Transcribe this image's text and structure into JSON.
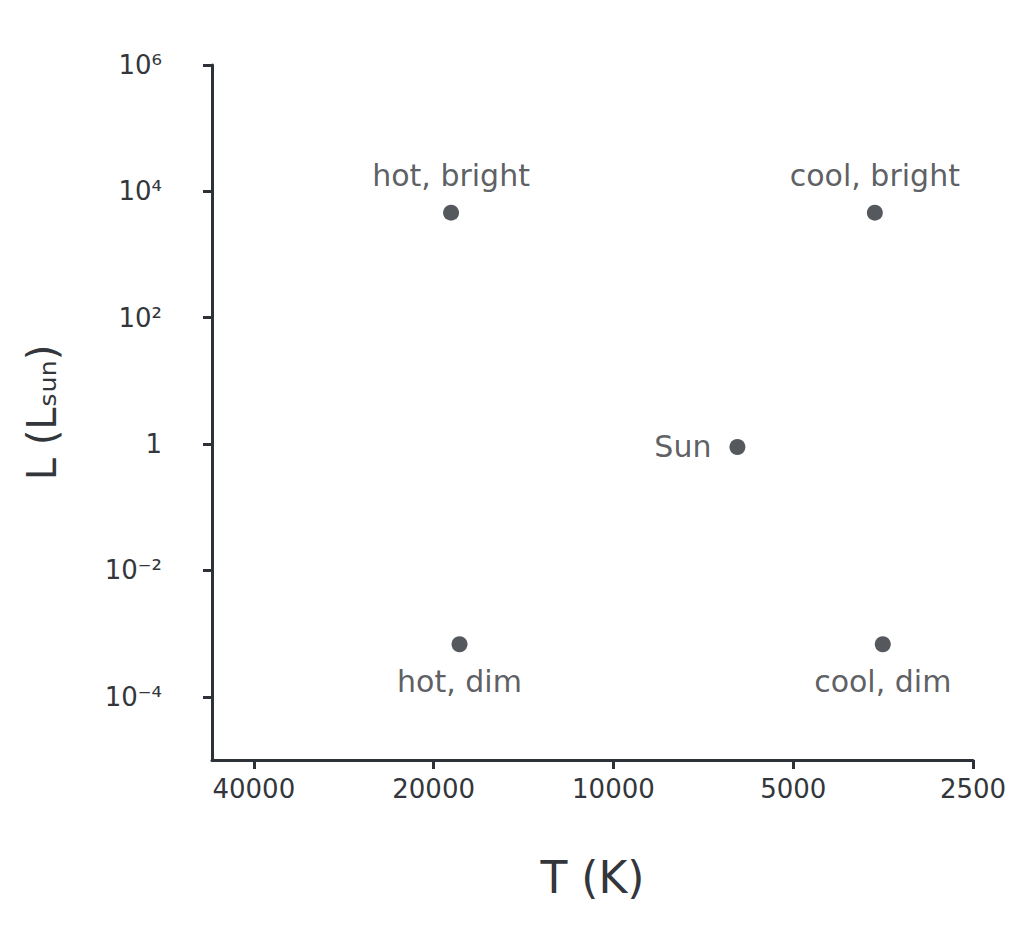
{
  "chart_data": {
    "type": "scatter",
    "xlabel": "T (K)",
    "ylabel": "L (Lₛᵤₙ)",
    "log": true,
    "grid": false,
    "color": "#2b2f36",
    "x": [
      18700,
      3650,
      6200,
      18100,
      3540
    ],
    "values": [
      4600,
      4600,
      0.9,
      0.00068,
      0.00068
    ],
    "point_labels": [
      "hot, bright",
      "cool, bright",
      "Sun",
      "hot, dim",
      "cool, dim"
    ],
    "xlim": [
      47000,
      2500
    ],
    "ylim": [
      1e-05,
      1000000
    ],
    "xticks": [
      40000,
      20000,
      10000,
      5000,
      2500
    ],
    "yticks": [
      {
        "value": 0.0001,
        "label": "10⁻⁴"
      },
      {
        "value": 0.01,
        "label": "10⁻²"
      },
      1,
      {
        "value": 100,
        "label": "10²"
      },
      {
        "value": 10000,
        "label": "10⁴"
      },
      {
        "value": 1000000,
        "label": "10⁶"
      }
    ]
  }
}
